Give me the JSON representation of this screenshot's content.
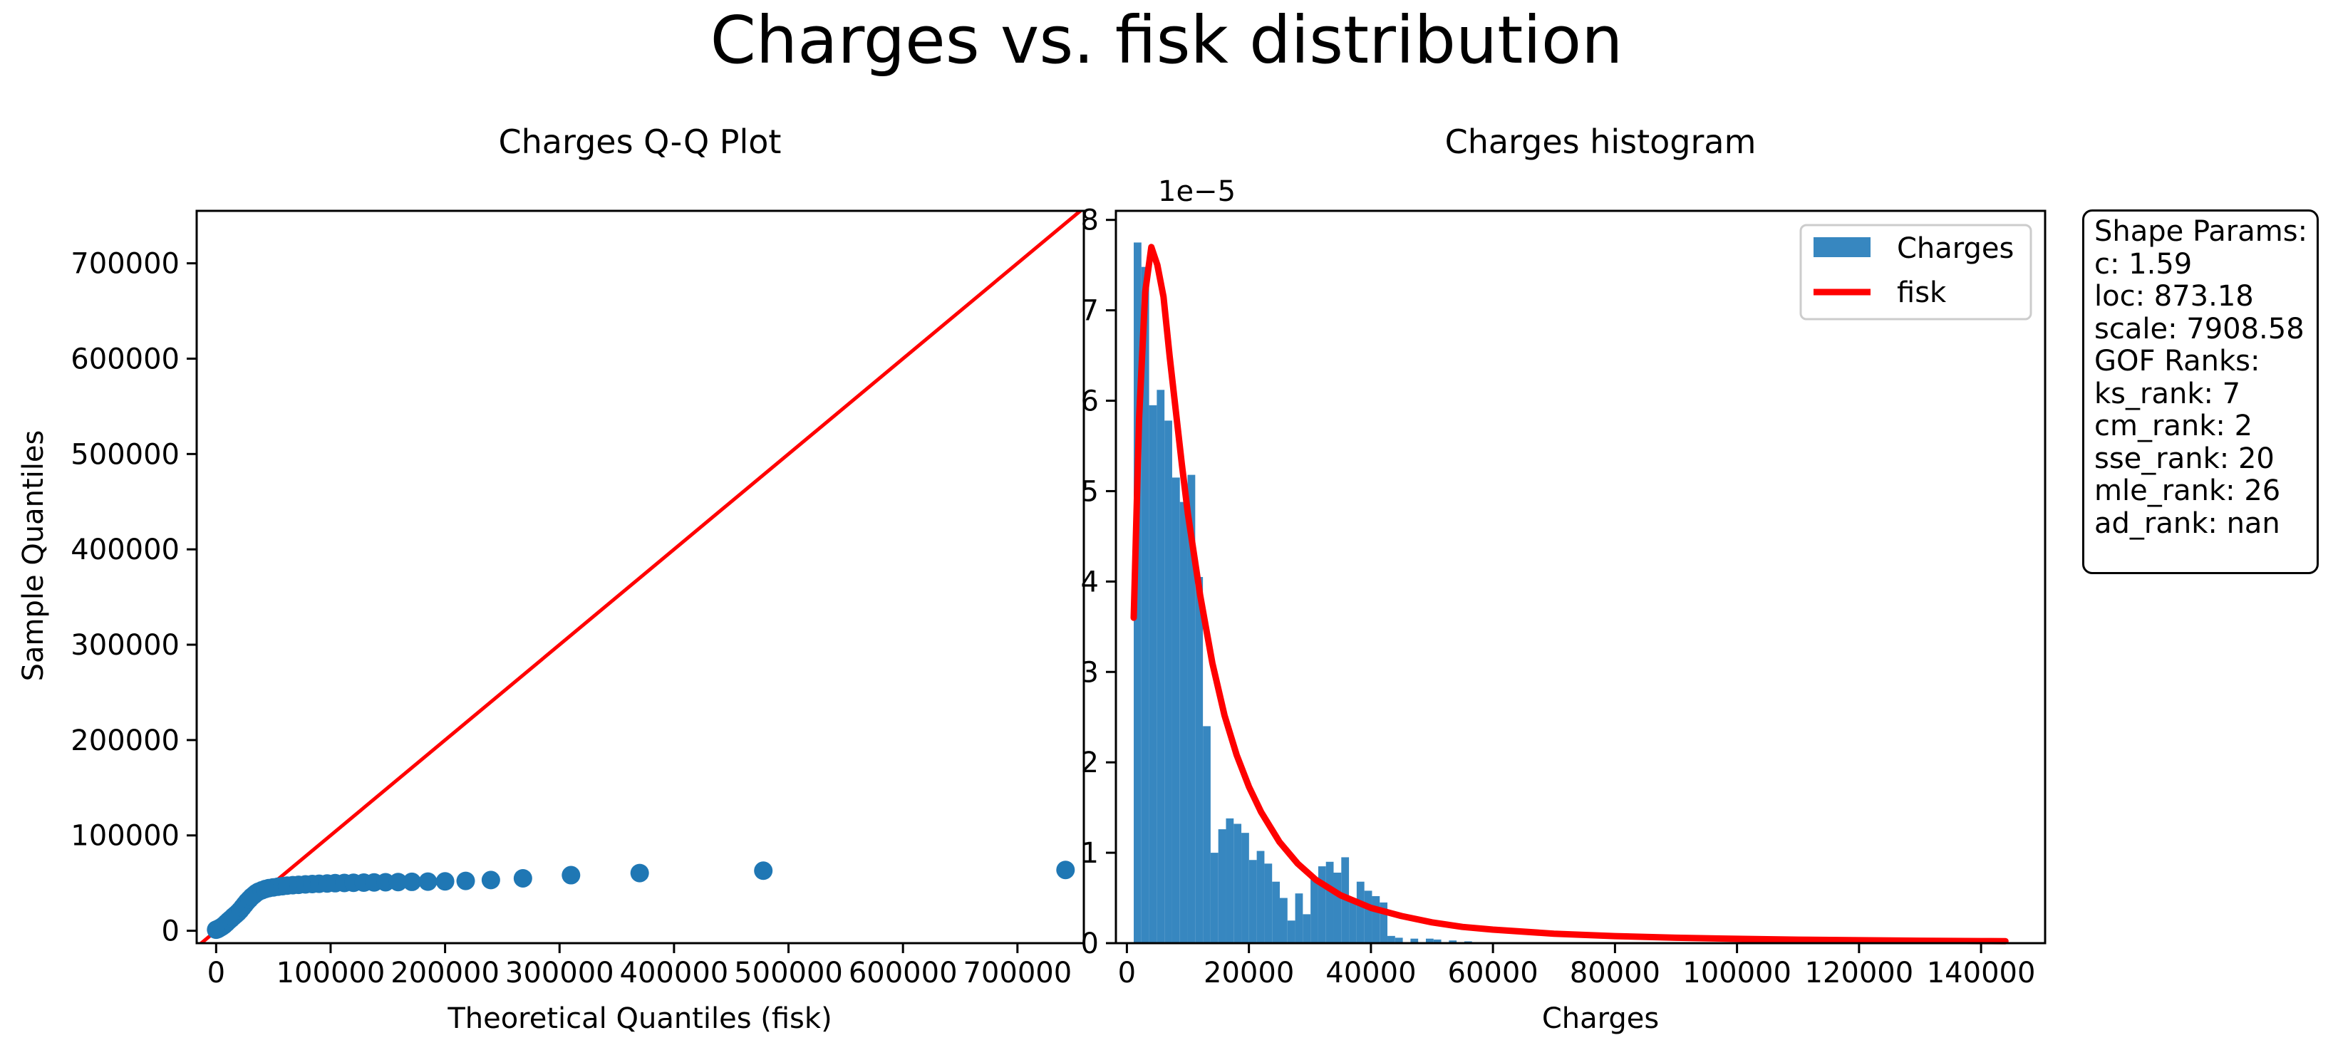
{
  "figure_title": "Charges vs. fisk distribution",
  "chart_data": [
    {
      "type": "scatter",
      "title": "Charges Q-Q Plot",
      "xlabel": "Theoretical Quantiles (fisk)",
      "ylabel": "Sample Quantiles",
      "xlim": [
        -17000,
        758000
      ],
      "ylim": [
        -13000,
        755000
      ],
      "xticks": [
        0,
        100000,
        200000,
        300000,
        400000,
        500000,
        600000,
        700000
      ],
      "xtick_labels": [
        "0",
        "100000",
        "200000",
        "300000",
        "400000",
        "500000",
        "600000",
        "700000"
      ],
      "yticks": [
        0,
        100000,
        200000,
        300000,
        400000,
        500000,
        600000,
        700000
      ],
      "ytick_labels": [
        "0",
        "100000",
        "200000",
        "300000",
        "400000",
        "500000",
        "600000",
        "700000"
      ],
      "reference_line": {
        "from": [
          -17000,
          -17000
        ],
        "to": [
          758000,
          758000
        ],
        "color": "#ff0000"
      },
      "marker_color": "#1f77b4",
      "points": [
        [
          0,
          1100
        ],
        [
          1500,
          1800
        ],
        [
          3000,
          2800
        ],
        [
          5000,
          4200
        ],
        [
          7000,
          6000
        ],
        [
          9000,
          8200
        ],
        [
          11000,
          10500
        ],
        [
          13000,
          12500
        ],
        [
          15000,
          14800
        ],
        [
          17000,
          16800
        ],
        [
          19000,
          19000
        ],
        [
          21000,
          21500
        ],
        [
          23000,
          24500
        ],
        [
          25000,
          27500
        ],
        [
          27000,
          30500
        ],
        [
          29000,
          33000
        ],
        [
          31000,
          35500
        ],
        [
          33000,
          37500
        ],
        [
          35000,
          39500
        ],
        [
          37000,
          41000
        ],
        [
          40000,
          42500
        ],
        [
          43000,
          43800
        ],
        [
          46000,
          44700
        ],
        [
          50000,
          45500
        ],
        [
          54000,
          46200
        ],
        [
          58000,
          46800
        ],
        [
          62000,
          47300
        ],
        [
          67000,
          47800
        ],
        [
          72000,
          48200
        ],
        [
          78000,
          48600
        ],
        [
          84000,
          49000
        ],
        [
          90000,
          49300
        ],
        [
          97000,
          49600
        ],
        [
          104000,
          49900
        ],
        [
          112000,
          50100
        ],
        [
          120000,
          50300
        ],
        [
          129000,
          50500
        ],
        [
          138000,
          50700
        ],
        [
          148000,
          50900
        ],
        [
          159000,
          51100
        ],
        [
          171000,
          51300
        ],
        [
          185000,
          51500
        ],
        [
          200000,
          51800
        ],
        [
          218000,
          52300
        ],
        [
          240000,
          53200
        ],
        [
          268000,
          55000
        ],
        [
          310000,
          58300
        ],
        [
          370000,
          60500
        ],
        [
          478000,
          63000
        ],
        [
          742000,
          63800
        ]
      ]
    },
    {
      "type": "bar",
      "title": "Charges histogram",
      "xlabel": "Charges",
      "ylabel": "",
      "offset_label": "1e−5",
      "xlim": [
        -1800,
        150500
      ],
      "ylim": [
        0,
        8.1
      ],
      "xticks": [
        0,
        20000,
        40000,
        60000,
        80000,
        100000,
        120000,
        140000
      ],
      "xtick_labels": [
        "0",
        "20000",
        "40000",
        "60000",
        "80000",
        "100000",
        "120000",
        "140000"
      ],
      "yticks": [
        0,
        1,
        2,
        3,
        4,
        5,
        6,
        7,
        8
      ],
      "ytick_labels": [
        "0",
        "1",
        "2",
        "3",
        "4",
        "5",
        "6",
        "7",
        "8"
      ],
      "bin_start": 1122,
      "bin_width": 1260,
      "bar_color": "#3787c0",
      "values": [
        7.75,
        7.48,
        5.95,
        6.12,
        5.78,
        5.15,
        4.88,
        5.18,
        4.05,
        2.4,
        1.0,
        1.26,
        1.38,
        1.32,
        1.22,
        0.92,
        1.02,
        0.88,
        0.68,
        0.5,
        0.25,
        0.55,
        0.32,
        0.72,
        0.85,
        0.9,
        0.78,
        0.95,
        0.48,
        0.68,
        0.58,
        0.52,
        0.45,
        0.08,
        0.06,
        0.0,
        0.05,
        0.0,
        0.05,
        0.04,
        0.0,
        0.03,
        0.0,
        0.02
      ],
      "legend": [
        "Charges",
        "fisk"
      ],
      "legend_position": "top-right",
      "fit_curve": {
        "name": "fisk",
        "color": "#ff0000",
        "x": [
          1122,
          2000,
          3000,
          4000,
          5000,
          6000,
          7000,
          8000,
          9000,
          10000,
          11000,
          12000,
          14000,
          16000,
          18000,
          20000,
          22000,
          25000,
          28000,
          31000,
          35000,
          40000,
          45000,
          50000,
          55000,
          60000,
          70000,
          80000,
          90000,
          100000,
          110000,
          120000,
          130000,
          140000,
          144000
        ],
        "y": [
          3.6,
          5.8,
          7.2,
          7.7,
          7.5,
          7.15,
          6.5,
          5.9,
          5.3,
          4.75,
          4.3,
          3.85,
          3.1,
          2.52,
          2.08,
          1.73,
          1.45,
          1.12,
          0.88,
          0.7,
          0.53,
          0.39,
          0.3,
          0.23,
          0.18,
          0.15,
          0.105,
          0.078,
          0.06,
          0.048,
          0.039,
          0.032,
          0.027,
          0.023,
          0.022
        ]
      }
    }
  ],
  "info_box": {
    "lines": [
      "Shape Params:",
      "c: 1.59",
      "loc: 873.18",
      "scale: 7908.58",
      "",
      "GOF Ranks:",
      "ks_rank: 7",
      "cm_rank: 2",
      "sse_rank: 20",
      "mle_rank: 26",
      "ad_rank: nan"
    ]
  }
}
